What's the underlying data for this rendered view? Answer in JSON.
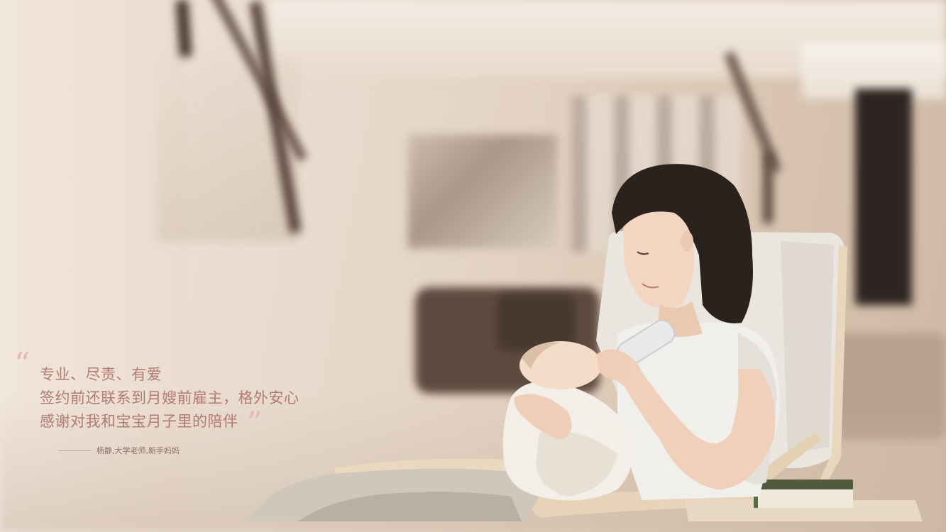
{
  "quote": {
    "lines": [
      "专业、尽责、有爱",
      "签约前还联系到月嫂前雇主，格外安心",
      "感谢对我和宝宝月子里的陪伴"
    ],
    "attribution": "杨静,大学老师,新手妈妈"
  },
  "colors": {
    "quote_text": "#b17a72",
    "quote_mark": "#e4b8b8",
    "attribution_text": "#8a7068"
  }
}
